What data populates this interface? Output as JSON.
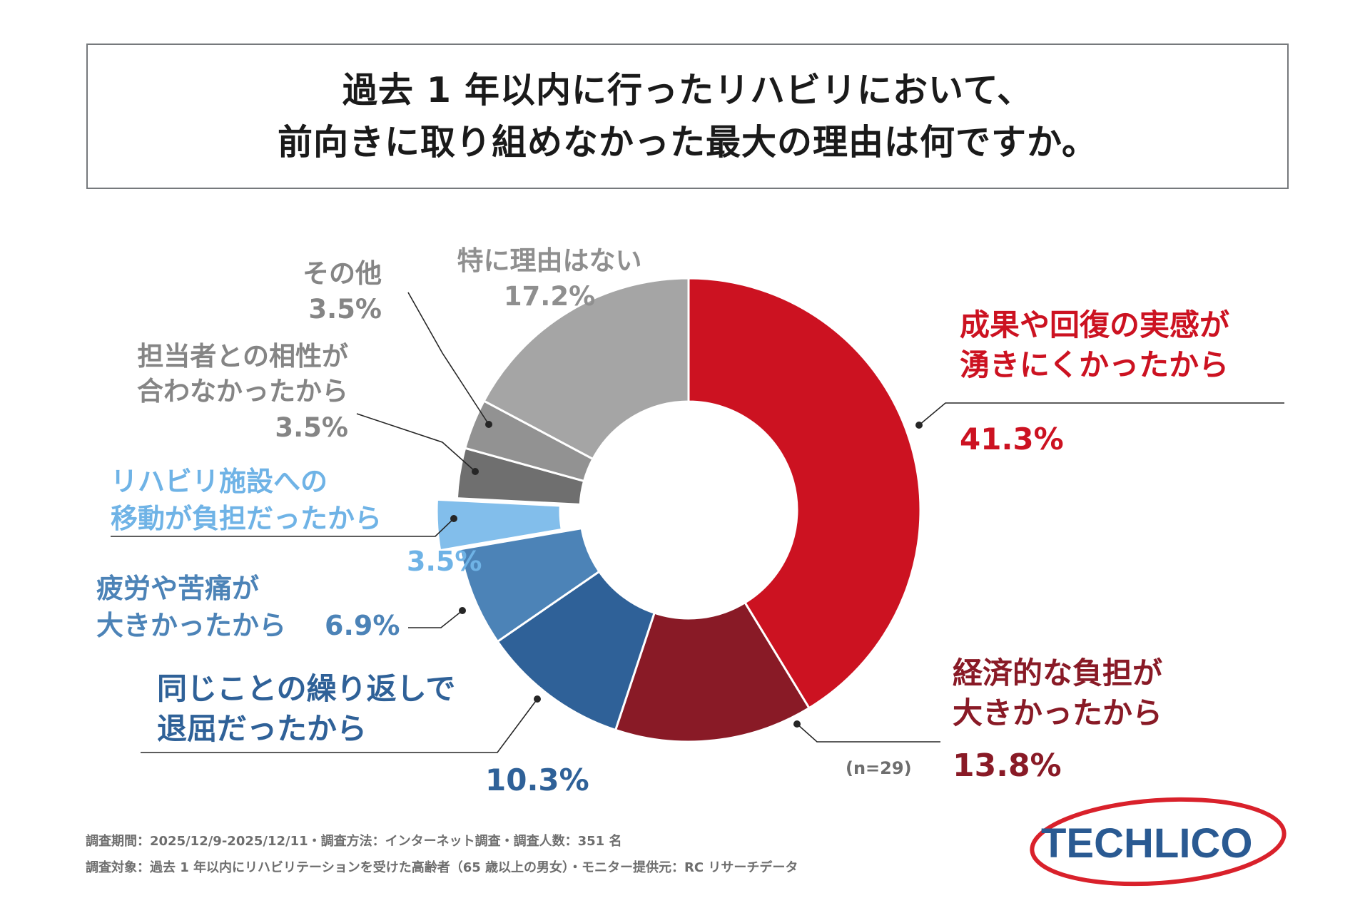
{
  "title": {
    "line1": "過去 1 年以内に行ったリハビリにおいて、",
    "line2": "前向きに取り組めなかった最大の理由は何ですか。"
  },
  "chart_data": {
    "type": "pie",
    "subtype": "donut",
    "sample": "(n=29)",
    "slices": [
      {
        "label_lines": [
          "成果や回復の実感が",
          "湧きにくかったから"
        ],
        "value": 41.3,
        "value_label": "41.3%",
        "color": "#cc1221",
        "label_color": "#cc1221"
      },
      {
        "label_lines": [
          "経済的な負担が",
          "大きかったから"
        ],
        "value": 13.8,
        "value_label": "13.8%",
        "color": "#891a26",
        "label_color": "#891a26"
      },
      {
        "label_lines": [
          "同じことの繰り返しで",
          "退屈だったから"
        ],
        "value": 10.3,
        "value_label": "10.3%",
        "color": "#2f6198",
        "label_color": "#2f6198"
      },
      {
        "label_lines": [
          "疲労や苦痛が",
          "大きかったから"
        ],
        "value": 6.9,
        "value_label": "6.9%",
        "color": "#4c83b7",
        "label_color": "#4c83b7"
      },
      {
        "label_lines": [
          "リハビリ施設への",
          "移動が負担だったから"
        ],
        "value": 3.5,
        "value_label": "3.5%",
        "color": "#82beeb",
        "label_color": "#6fb3e6"
      },
      {
        "label_lines": [
          "担当者との相性が",
          "合わなかったから"
        ],
        "value": 3.5,
        "value_label": "3.5%",
        "color": "#6f6f6f",
        "label_color": "#858585"
      },
      {
        "label_lines": [
          "その他"
        ],
        "value": 3.5,
        "value_label": "3.5%",
        "color": "#929292",
        "label_color": "#858585"
      },
      {
        "label_lines": [
          "特に理由はない"
        ],
        "value": 17.2,
        "value_label": "17.2%",
        "color": "#a5a5a5",
        "label_color": "#8f8f8f"
      }
    ]
  },
  "footer": {
    "line1": "調査期間：2025/12/9-2025/12/11・調査方法：インターネット調査・調査人数：351 名",
    "line2": "調査対象：過去 1 年以内にリハビリテーションを受けた高齢者（65 歳以上の男女）・モニター提供元：RC リサーチデータ"
  },
  "logo": {
    "text": "TECHLICO",
    "color": "#2a5a92",
    "ring_color": "#d9212b"
  }
}
